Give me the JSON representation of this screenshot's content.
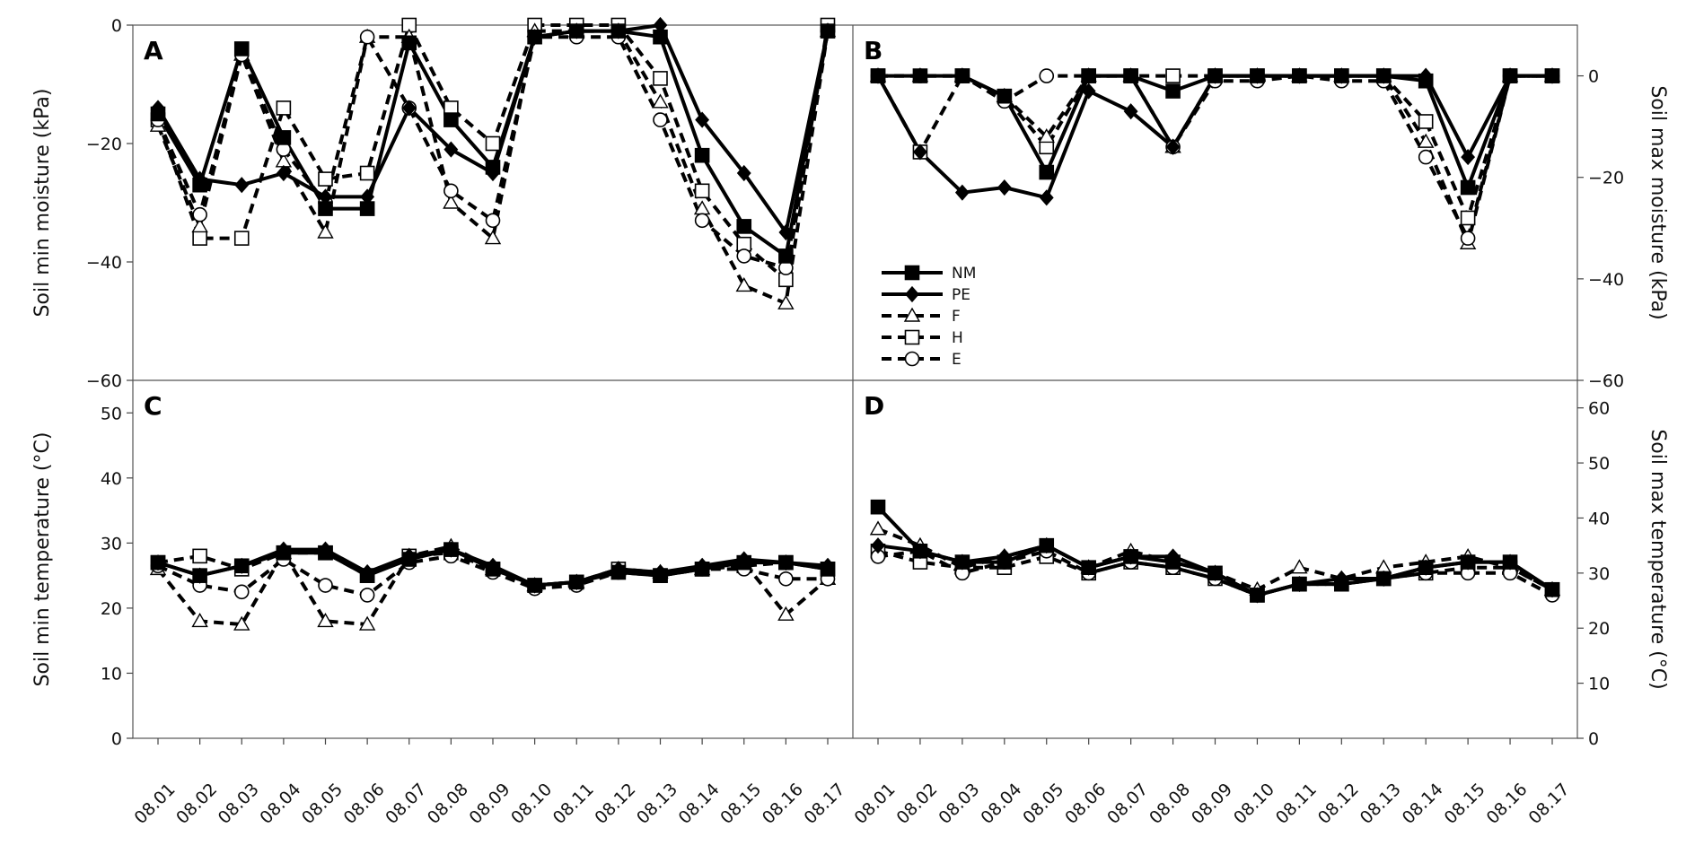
{
  "chart_data": {
    "type": "line",
    "x": [
      "08.01",
      "08.02",
      "08.03",
      "08.04",
      "08.05",
      "08.06",
      "08.07",
      "08.08",
      "08.09",
      "08.10",
      "08.11",
      "08.12",
      "08.13",
      "08.14",
      "08.15",
      "08.16",
      "08.17"
    ],
    "legend": {
      "placement": "inside panel B, lower-left",
      "entries": [
        "NM",
        "PE",
        "F",
        "H",
        "E"
      ]
    },
    "series_styles": {
      "NM": {
        "line": "solid",
        "marker": "square",
        "fill": "#000000"
      },
      "PE": {
        "line": "solid",
        "marker": "diamond",
        "fill": "#000000"
      },
      "F": {
        "line": "dashed",
        "marker": "triangle",
        "fill": "#ffffff"
      },
      "H": {
        "line": "dashed",
        "marker": "square",
        "fill": "#ffffff"
      },
      "E": {
        "line": "dashed",
        "marker": "circle",
        "fill": "#ffffff"
      }
    },
    "panels": [
      {
        "label": "A",
        "ylabel": "Soil min moisture (kPa)",
        "ylim": [
          -60,
          0
        ],
        "yticks": [
          0,
          -20,
          -40,
          -60
        ],
        "tick_labels": [
          "0",
          "−20",
          "−40",
          "−60"
        ],
        "axis_side": "left",
        "show_x_labels": false,
        "series": [
          {
            "name": "NM",
            "values": [
              -15,
              -27,
              -4,
              -19,
              -31,
              -31,
              -3,
              -16,
              -24,
              -2,
              -1,
              -1,
              -2,
              -22,
              -34,
              -39,
              -1
            ]
          },
          {
            "name": "PE",
            "values": [
              -14,
              -26,
              -27,
              -25,
              -29,
              -29,
              -14,
              -21,
              -25,
              -2,
              -1,
              -1,
              0,
              -16,
              -25,
              -35,
              -1
            ]
          },
          {
            "name": "F",
            "values": [
              -17,
              -34,
              -5,
              -23,
              -35,
              -2,
              -2,
              -30,
              -36,
              -1,
              -1,
              -1,
              -13,
              -31,
              -44,
              -47,
              -1
            ]
          },
          {
            "name": "H",
            "values": [
              -16,
              -36,
              -36,
              -14,
              -26,
              -25,
              0,
              -14,
              -20,
              0,
              0,
              0,
              -9,
              -28,
              -37,
              -43,
              0
            ]
          },
          {
            "name": "E",
            "values": [
              -16,
              -32,
              -5,
              -21,
              -30,
              -2,
              -14,
              -28,
              -33,
              -2,
              -2,
              -2,
              -16,
              -33,
              -39,
              -41,
              -1
            ]
          }
        ]
      },
      {
        "label": "B",
        "ylabel": "Soil max moisture (kPa)",
        "ylim": [
          -60,
          10
        ],
        "yticks": [
          0,
          -20,
          -40,
          -60
        ],
        "tick_labels": [
          "0",
          "−20",
          "−40",
          "−60"
        ],
        "axis_side": "right",
        "show_x_labels": false,
        "series": [
          {
            "name": "NM",
            "values": [
              0,
              0,
              0,
              -4,
              -19,
              0,
              0,
              -3,
              0,
              0,
              0,
              0,
              0,
              -1,
              -22,
              0,
              0
            ]
          },
          {
            "name": "PE",
            "values": [
              0,
              -15,
              -23,
              -22,
              -24,
              -3,
              -7,
              -14,
              0,
              0,
              0,
              0,
              0,
              0,
              -16,
              0,
              0
            ]
          },
          {
            "name": "F",
            "values": [
              0,
              0,
              0,
              -4,
              -12,
              0,
              0,
              -14,
              0,
              0,
              0,
              0,
              0,
              -13,
              -33,
              0,
              0
            ]
          },
          {
            "name": "H",
            "values": [
              0,
              -15,
              0,
              -4,
              -14,
              0,
              0,
              0,
              0,
              0,
              0,
              0,
              0,
              -9,
              -28,
              0,
              0
            ]
          },
          {
            "name": "E",
            "values": [
              0,
              0,
              0,
              -5,
              0,
              0,
              0,
              -14,
              -1,
              -1,
              0,
              -1,
              -1,
              -16,
              -32,
              0,
              0
            ]
          }
        ]
      },
      {
        "label": "C",
        "ylabel": "Soil min temperature (°C)",
        "ylim": [
          0,
          55
        ],
        "yticks": [
          0,
          10,
          20,
          30,
          40,
          50
        ],
        "tick_labels": [
          "0",
          "10",
          "20",
          "30",
          "40",
          "50"
        ],
        "axis_side": "left",
        "show_x_labels": true,
        "series": [
          {
            "name": "NM",
            "values": [
              27,
              25,
              26.5,
              28.5,
              28.5,
              25,
              27.5,
              29,
              26,
              23.5,
              24,
              25.5,
              25,
              26,
              27,
              27,
              26
            ]
          },
          {
            "name": "PE",
            "values": [
              27,
              25,
              26.5,
              29,
              29,
              25.5,
              28,
              29,
              26.5,
              23.5,
              24,
              26,
              25.5,
              26.5,
              27.5,
              27,
              26.5
            ]
          },
          {
            "name": "F",
            "values": [
              26,
              18,
              17.5,
              28.5,
              18,
              17.5,
              28,
              29.5,
              26,
              23.5,
              24,
              26,
              25.5,
              26,
              27,
              19,
              24.5
            ]
          },
          {
            "name": "H",
            "values": [
              27,
              28,
              26,
              28.5,
              28.5,
              25,
              28,
              28.5,
              26,
              23.5,
              24,
              26,
              25,
              26,
              26.5,
              27,
              26
            ]
          },
          {
            "name": "E",
            "values": [
              26.5,
              23.5,
              22.5,
              27.5,
              23.5,
              22,
              27,
              28,
              25.5,
              23,
              23.5,
              25.5,
              25,
              26,
              26,
              24.5,
              24.5
            ]
          }
        ]
      },
      {
        "label": "D",
        "ylabel": "Soil max temperature (°C)",
        "ylim": [
          0,
          65
        ],
        "yticks": [
          0,
          10,
          20,
          30,
          40,
          50,
          60
        ],
        "tick_labels": [
          "0",
          "10",
          "20",
          "30",
          "40",
          "50",
          "60"
        ],
        "axis_side": "right",
        "show_x_labels": true,
        "series": [
          {
            "name": "NM",
            "values": [
              42,
              34,
              32,
              32,
              35,
              31,
              33,
              32,
              30,
              26,
              28,
              28,
              29,
              31,
              32,
              32,
              27
            ]
          },
          {
            "name": "PE",
            "values": [
              35,
              34,
              32,
              33,
              35,
              31,
              33,
              33,
              30,
              26,
              28,
              29,
              29,
              31,
              32,
              32,
              27
            ]
          },
          {
            "name": "F",
            "values": [
              38,
              35,
              31,
              33,
              35,
              31,
              34,
              32,
              30,
              27,
              31,
              29,
              31,
              32,
              33,
              31,
              27
            ]
          },
          {
            "name": "H",
            "values": [
              34,
              32,
              31,
              31,
              33,
              30,
              32,
              31,
              29,
              26,
              28,
              28,
              29,
              30,
              31,
              31,
              27
            ]
          },
          {
            "name": "E",
            "values": [
              33,
              34,
              30,
              32,
              34,
              30,
              32,
              31,
              29,
              26,
              28,
              28,
              29,
              30,
              30,
              30,
              26
            ]
          }
        ]
      }
    ]
  }
}
